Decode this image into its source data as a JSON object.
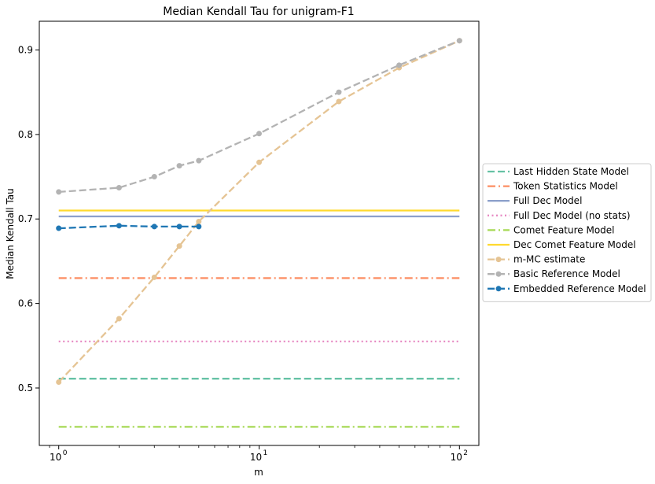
{
  "chart_data": {
    "type": "line",
    "title": "Median Kendall Tau for unigram-F1",
    "xlabel": "m",
    "ylabel": "Median Kendall Tau",
    "xscale": "log",
    "xlim": [
      0.8,
      125
    ],
    "ylim": [
      0.432,
      0.934
    ],
    "x_ticks": [
      1,
      10,
      100
    ],
    "x_tick_labels": [
      "10",
      "10",
      "10"
    ],
    "x_tick_exponents": [
      "0",
      "1",
      "2"
    ],
    "y_ticks": [
      0.5,
      0.6,
      0.7,
      0.8,
      0.9
    ],
    "y_tick_labels": [
      "0.5",
      "0.6",
      "0.7",
      "0.8",
      "0.9"
    ],
    "grid": false,
    "legend_position": "outside-right",
    "series": [
      {
        "name": "Last Hidden State Model",
        "color": "#66c2a5",
        "style": "dashed",
        "marker": "none",
        "x": [
          1,
          100
        ],
        "y": [
          0.511,
          0.511
        ]
      },
      {
        "name": "Token Statistics Model",
        "color": "#fc8d62",
        "style": "dashdot",
        "marker": "none",
        "x": [
          1,
          100
        ],
        "y": [
          0.63,
          0.63
        ]
      },
      {
        "name": "Full Dec Model",
        "color": "#8da0cb",
        "style": "solid",
        "marker": "none",
        "x": [
          1,
          100
        ],
        "y": [
          0.703,
          0.703
        ]
      },
      {
        "name": "Full Dec Model (no stats)",
        "color": "#e78ac3",
        "style": "dotted",
        "marker": "none",
        "x": [
          1,
          100
        ],
        "y": [
          0.555,
          0.555
        ]
      },
      {
        "name": "Comet Feature Model",
        "color": "#a6d854",
        "style": "dashdot",
        "marker": "none",
        "x": [
          1,
          100
        ],
        "y": [
          0.454,
          0.454
        ]
      },
      {
        "name": "Dec Comet Feature Model",
        "color": "#ffd92f",
        "style": "solid",
        "marker": "none",
        "x": [
          1,
          100
        ],
        "y": [
          0.71,
          0.71
        ]
      },
      {
        "name": "m-MC estimate",
        "color": "#e5c494",
        "style": "dashed",
        "marker": "circle",
        "x": [
          1,
          2,
          3,
          4,
          5,
          10,
          25,
          50,
          100
        ],
        "y": [
          0.507,
          0.582,
          0.631,
          0.668,
          0.697,
          0.767,
          0.839,
          0.879,
          0.911
        ]
      },
      {
        "name": "Basic Reference Model",
        "color": "#b3b3b3",
        "style": "dashed",
        "marker": "circle",
        "x": [
          1,
          2,
          3,
          4,
          5,
          10,
          25,
          50,
          100
        ],
        "y": [
          0.732,
          0.737,
          0.75,
          0.763,
          0.769,
          0.801,
          0.85,
          0.882,
          0.911
        ]
      },
      {
        "name": "Embedded Reference Model",
        "color": "#1f77b4",
        "style": "dashed",
        "marker": "circle",
        "x": [
          1,
          2,
          3,
          4,
          5
        ],
        "y": [
          0.689,
          0.692,
          0.691,
          0.691,
          0.691
        ]
      }
    ]
  }
}
